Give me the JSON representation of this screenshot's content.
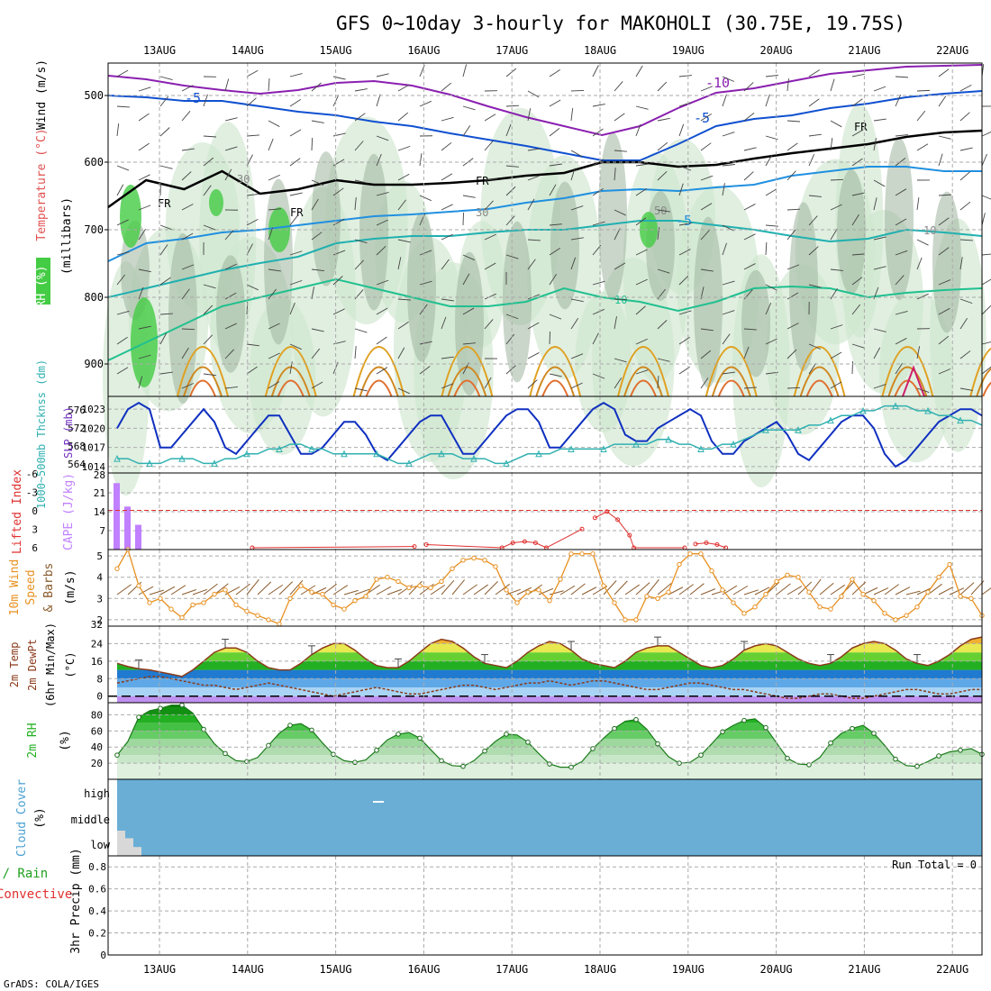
{
  "title": "GFS 0~10day 3-hourly for MAKOHOLI (30.75E, 19.75S)",
  "credit": "GrADS: COLA/IGES",
  "run_total": "Run Total = 0",
  "colors": {
    "temp_line": "#0000c8",
    "thick_line": "#20b0b0",
    "rh_green": "#22b022",
    "cape": "#c080ff",
    "li": "#e03030",
    "wind": "#e89020",
    "cloud": "#6aaed6",
    "precip": "#000000"
  },
  "chart_data": [
    {
      "type": "line",
      "panel": "upper-air",
      "x": [
        "13AUG",
        "14AUG",
        "15AUG",
        "16AUG",
        "17AUG",
        "18AUG",
        "19AUG",
        "20AUG",
        "21AUG",
        "22AUG"
      ],
      "ylabel_parts": [
        {
          "text": "RH (%)",
          "color": "#20a020"
        },
        {
          "text": "Temperature (°C)",
          "color": "#e05050"
        },
        {
          "text": "Wind (m/s)",
          "color": "#000000"
        }
      ],
      "ylabel2": "(millibars)",
      "yticks": [
        500,
        600,
        700,
        800,
        900
      ],
      "ylim": [
        1000,
        450
      ],
      "contour_labels": [
        "-10",
        "-5",
        "-5",
        "-5",
        "FR",
        "FR",
        "FR",
        "FR",
        "10",
        "50",
        "30",
        "30",
        "10"
      ]
    },
    {
      "type": "line",
      "panel": "thickness-slp",
      "ylabel_left": "1000~500mb Thcknss (dm)",
      "ylabel_right": "SLP (mb)",
      "yticks_left": [
        "576",
        "572",
        "568",
        "564"
      ],
      "yticks_right": [
        "1023",
        "1020",
        "1017",
        "1014"
      ],
      "series": [
        {
          "name": "SLP",
          "values": [
            1020,
            1023,
            1024,
            1023,
            1017,
            1017,
            1019,
            1021,
            1023,
            1021,
            1017,
            1016,
            1018,
            1020,
            1022,
            1022,
            1019,
            1016,
            1016,
            1017,
            1019,
            1021,
            1021,
            1019,
            1016,
            1015,
            1017,
            1019,
            1021,
            1022,
            1022,
            1019,
            1016,
            1016,
            1018,
            1020,
            1022,
            1023,
            1023,
            1021,
            1017,
            1017,
            1019,
            1021,
            1023,
            1024,
            1023,
            1019,
            1018,
            1018,
            1020,
            1021,
            1022,
            1023,
            1022,
            1018,
            1016,
            1016,
            1018,
            1019,
            1020,
            1021,
            1019,
            1016,
            1015,
            1017,
            1019,
            1021,
            1022,
            1022,
            1020,
            1016,
            1014,
            1015,
            1017,
            1019,
            1021,
            1022,
            1023,
            1023,
            1022
          ]
        },
        {
          "name": "Thickness",
          "values": [
            565,
            565,
            564,
            564,
            564,
            565,
            565,
            565,
            564,
            564,
            565,
            565,
            566,
            566,
            567,
            567,
            568,
            568,
            567,
            567,
            566,
            566,
            566,
            566,
            566,
            565,
            564,
            564,
            565,
            566,
            566,
            566,
            565,
            565,
            565,
            564,
            564,
            565,
            566,
            566,
            566,
            567,
            567,
            567,
            567,
            567,
            568,
            568,
            568,
            568,
            569,
            569,
            568,
            568,
            567,
            567,
            568,
            568,
            569,
            570,
            571,
            571,
            571,
            571,
            572,
            572,
            573,
            574,
            574,
            575,
            575,
            576,
            576,
            576,
            575,
            575,
            574,
            574,
            573,
            573,
            572
          ]
        }
      ]
    },
    {
      "type": "bar",
      "panel": "cape-li",
      "ylabel_left": "Lifted Index",
      "ylabel_right": "CAPE (J/kg)",
      "yticks_left": [
        "-6",
        "-3",
        "0",
        "3",
        "6"
      ],
      "yticks_right": [
        "28",
        "21",
        "14",
        "7",
        ""
      ],
      "series": [
        {
          "name": "CAPE",
          "values": [
            25.5,
            16.5,
            9.5,
            0,
            0,
            0,
            0,
            0,
            0,
            0,
            0,
            0,
            0,
            0,
            0,
            0,
            0,
            0,
            0,
            0,
            0,
            0,
            0,
            0,
            0,
            0,
            0,
            0,
            0,
            0,
            0,
            0,
            0,
            0,
            0,
            0,
            0,
            0,
            0,
            0,
            0,
            0,
            0,
            0,
            0,
            0,
            0,
            0,
            0,
            0,
            0,
            0,
            0,
            0,
            0,
            0,
            0,
            0,
            0,
            0,
            0,
            0,
            0,
            0,
            0,
            0,
            0,
            0,
            0,
            0,
            0,
            0,
            0,
            0,
            0,
            0,
            0,
            0,
            0,
            0,
            0
          ]
        },
        {
          "name": "Lifted Index",
          "values": [
            6.5,
            6.5,
            6.5,
            6.5,
            6.5,
            6.5,
            6.5,
            6.5,
            6.5,
            6.5,
            6.5,
            6.5,
            6.5,
            6.5,
            6.5,
            6.5,
            6.5,
            6.5,
            6.5,
            6.5,
            6.5,
            6.5,
            6.5,
            6.5,
            6.5,
            6.5,
            6.5,
            6.5,
            6.5,
            6.5,
            6.5,
            6.5,
            6.5,
            6.5,
            6.5,
            6.5,
            6.5,
            6.5,
            6.5,
            6.5,
            6.5,
            6.5,
            6.5,
            6.5,
            6.5,
            6.5,
            6.5,
            6.5,
            6.5,
            6.5,
            6.5,
            6.5,
            6.5,
            6.5,
            6.5,
            6.5,
            6.5,
            6.5,
            6.5,
            6.5,
            6.5,
            6.5,
            6.5,
            6.5,
            6.5,
            6.5,
            6.5,
            6.5,
            6.5,
            6.5,
            6.5,
            6.5,
            6.5,
            6.5,
            6.5,
            6.5,
            6.5,
            6.5,
            6.5,
            6.5,
            6.5
          ]
        },
        {
          "name": "LI episodes",
          "points": [
            [
              12.5,
              6
            ],
            [
              27.5,
              5.8
            ],
            [
              28.6,
              5.5
            ],
            [
              35.6,
              6
            ],
            [
              36.6,
              5.2
            ],
            [
              37.7,
              5.0
            ],
            [
              38.7,
              5.2
            ],
            [
              39.7,
              6
            ],
            [
              43.0,
              3
            ],
            [
              44.2,
              1.2
            ],
            [
              45.3,
              0.2
            ],
            [
              46.3,
              1.5
            ],
            [
              47.4,
              4.0
            ],
            [
              47.8,
              6
            ],
            [
              52.5,
              6
            ],
            [
              53.5,
              5.4
            ],
            [
              54.5,
              5.2
            ],
            [
              55.5,
              5.5
            ],
            [
              56.3,
              6
            ]
          ]
        }
      ],
      "zero_line": 0
    },
    {
      "type": "line",
      "panel": "10m-wind",
      "ylabel": "10m Wind Speed & Barbs (m/s)",
      "yticks": [
        "5",
        "4",
        "3",
        "2"
      ],
      "ylim": [
        1.7,
        5.3
      ],
      "series": [
        {
          "name": "Wind speed",
          "values": [
            4.4,
            5.3,
            3.6,
            2.8,
            3.0,
            2.5,
            2.1,
            2.7,
            2.8,
            3.2,
            3.4,
            2.7,
            2.4,
            2.2,
            2.0,
            1.8,
            3.0,
            3.6,
            3.3,
            3.2,
            2.7,
            2.5,
            2.9,
            3.1,
            3.9,
            4.0,
            3.8,
            3.5,
            3.6,
            3.5,
            3.8,
            4.4,
            4.8,
            4.9,
            4.8,
            4.5,
            3.4,
            2.8,
            3.3,
            3.4,
            2.9,
            3.9,
            5.1,
            5.1,
            5.1,
            3.6,
            2.8,
            2.0,
            2.0,
            3.1,
            3.0,
            3.3,
            4.6,
            5.1,
            5.1,
            4.3,
            3.4,
            2.8,
            2.3,
            2.6,
            3.2,
            3.8,
            4.1,
            4.0,
            3.3,
            2.6,
            2.5,
            3.1,
            3.9,
            3.2,
            2.9,
            2.3,
            2.0,
            2.2,
            2.6,
            3.3,
            4.0,
            4.6,
            3.1,
            3.0,
            2.2
          ]
        }
      ]
    },
    {
      "type": "area",
      "panel": "2m-temp",
      "ylabel": "2m Temp 2m DewPt (6hr Min/Max) (°C)",
      "yticks": [
        "32",
        "24",
        "16",
        "8",
        "0"
      ],
      "ylim": [
        -3,
        32
      ],
      "series": [
        {
          "name": "Temperature",
          "values": [
            15,
            13.5,
            12.5,
            12,
            11,
            10,
            9,
            12,
            16,
            20,
            22,
            22,
            20,
            16,
            13,
            12,
            12,
            15,
            19,
            22,
            24,
            24,
            21,
            17,
            14,
            13,
            13,
            16,
            20,
            24,
            26,
            25,
            22,
            18,
            15,
            14,
            13,
            16,
            20,
            23,
            25,
            24,
            21,
            17,
            15,
            14,
            13,
            16,
            20,
            22,
            23,
            23,
            20,
            17,
            14,
            13,
            14,
            17,
            21,
            23,
            24,
            23,
            20,
            17,
            15,
            14,
            15,
            18,
            22,
            24,
            25,
            24,
            21,
            17,
            15,
            14,
            16,
            19,
            23,
            26,
            27
          ]
        },
        {
          "name": "Dewpoint",
          "values": [
            6,
            7,
            8,
            9,
            9,
            8,
            7,
            6,
            5,
            5,
            4,
            3,
            4,
            5,
            6,
            5,
            4,
            3,
            2,
            1,
            0,
            1,
            2,
            3,
            4,
            3,
            2,
            1,
            1,
            2,
            3,
            4,
            5,
            5,
            4,
            3,
            4,
            5,
            6,
            6,
            7,
            6,
            5,
            6,
            7,
            7,
            6,
            5,
            4,
            3,
            3,
            4,
            5,
            6,
            6,
            5,
            4,
            3,
            3,
            2,
            1,
            0,
            -1,
            -1,
            0,
            1,
            1,
            0,
            -1,
            -1,
            0,
            1,
            2,
            3,
            3,
            2,
            1,
            1,
            2,
            3,
            3
          ]
        }
      ]
    },
    {
      "type": "area",
      "panel": "2m-rh",
      "ylabel": "2m RH (%)",
      "yticks": [
        "80",
        "60",
        "40",
        "20"
      ],
      "ylim": [
        0,
        95
      ],
      "series": [
        {
          "name": "RH",
          "values": [
            30,
            47,
            77,
            85,
            88,
            92,
            92,
            82,
            62,
            44,
            32,
            23,
            22,
            27,
            42,
            57,
            67,
            69,
            61,
            45,
            31,
            23,
            21,
            24,
            36,
            49,
            56,
            58,
            51,
            37,
            23,
            17,
            16,
            23,
            35,
            47,
            56,
            55,
            46,
            32,
            19,
            15,
            15,
            22,
            38,
            51,
            63,
            72,
            74,
            62,
            44,
            28,
            20,
            21,
            30,
            44,
            59,
            67,
            73,
            75,
            64,
            45,
            26,
            19,
            18,
            27,
            45,
            57,
            63,
            67,
            57,
            42,
            25,
            17,
            16,
            22,
            29,
            34,
            36,
            38,
            31
          ]
        }
      ]
    },
    {
      "type": "heatmap",
      "panel": "cloud-cover",
      "ylabel": "Cloud Cover (%)",
      "yticks": [
        "high",
        "middle",
        "low"
      ],
      "low_cloud": [
        40,
        28,
        14
      ]
    },
    {
      "type": "bar",
      "panel": "precip",
      "ylabel_left_parts": [
        {
          "text": "Total / Rain",
          "color": "#20a020"
        },
        {
          "text": "Convective",
          "color": "#e03030"
        }
      ],
      "ylabel": "3hr Precip (mm)",
      "yticks": [
        "0.8",
        "0.6",
        "0.4",
        "0.2",
        "0"
      ],
      "ylim": [
        0,
        0.9
      ],
      "values": []
    }
  ]
}
